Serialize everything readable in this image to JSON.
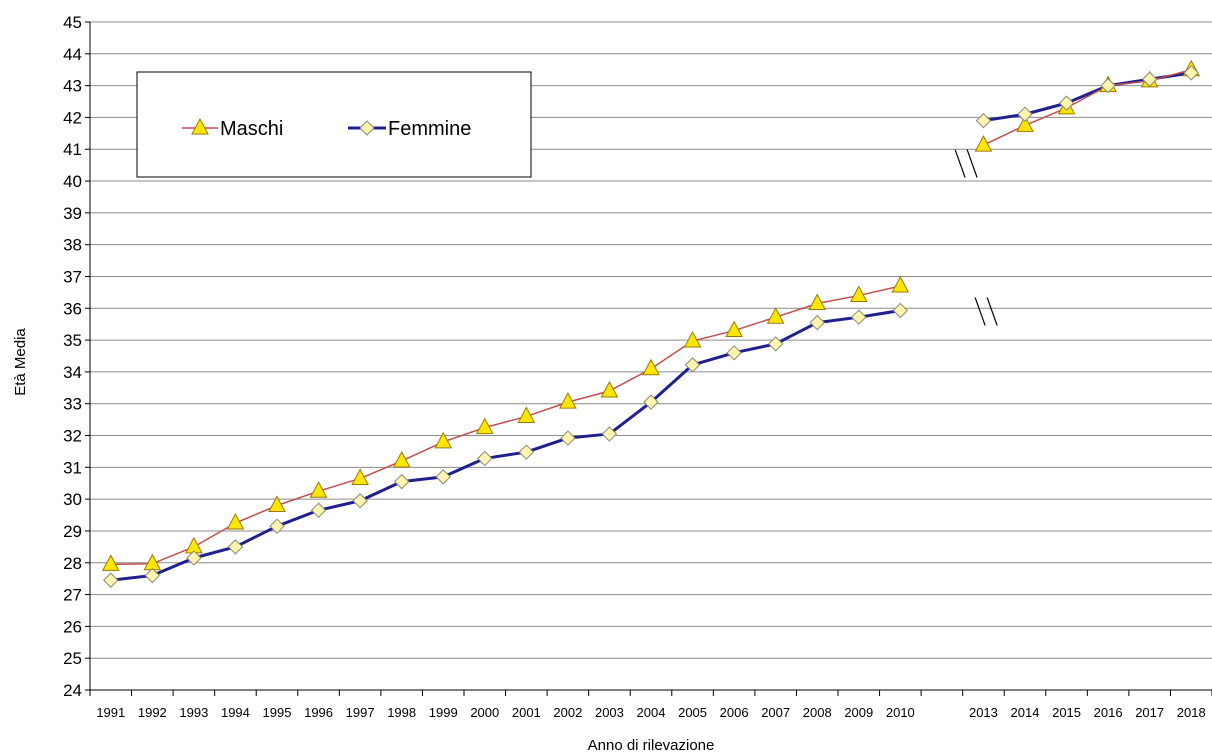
{
  "chart_data": {
    "type": "line",
    "title": "",
    "xlabel": "Anno di rilevazione",
    "ylabel": "Età Media",
    "ylim": [
      24,
      45
    ],
    "y_ticks": [
      24,
      25,
      26,
      27,
      28,
      29,
      30,
      31,
      32,
      33,
      34,
      35,
      36,
      37,
      38,
      39,
      40,
      41,
      42,
      43,
      44,
      45
    ],
    "categories": [
      "1991",
      "1992",
      "1993",
      "1994",
      "1995",
      "1996",
      "1997",
      "1998",
      "1999",
      "2000",
      "2001",
      "2002",
      "2003",
      "2004",
      "2005",
      "2006",
      "2007",
      "2008",
      "2009",
      "2010",
      "",
      "2013",
      "2014",
      "2015",
      "2016",
      "2017",
      "2018"
    ],
    "grid": true,
    "legend_position": "top-left",
    "axis_break_marks": true,
    "series": [
      {
        "name": "Maschi",
        "color": "#C0504D",
        "marker": "triangle",
        "marker_fill": "#FFE600",
        "values": [
          27.95,
          27.97,
          28.5,
          29.25,
          29.8,
          30.25,
          30.65,
          31.2,
          31.8,
          32.25,
          32.6,
          33.05,
          33.4,
          34.1,
          34.97,
          35.3,
          35.72,
          36.15,
          36.4,
          36.7,
          null,
          41.13,
          41.75,
          42.3,
          43.0,
          43.15,
          43.5
        ]
      },
      {
        "name": "Femmine",
        "color": "#1F1F8F",
        "marker": "diamond",
        "marker_fill": "#FFF5B0",
        "values": [
          27.45,
          27.6,
          28.15,
          28.5,
          29.15,
          29.65,
          29.95,
          30.55,
          30.7,
          31.28,
          31.48,
          31.92,
          32.05,
          33.05,
          34.22,
          34.6,
          34.88,
          35.55,
          35.72,
          35.93,
          null,
          41.9,
          42.1,
          42.45,
          43.0,
          43.2,
          43.4
        ]
      }
    ]
  }
}
